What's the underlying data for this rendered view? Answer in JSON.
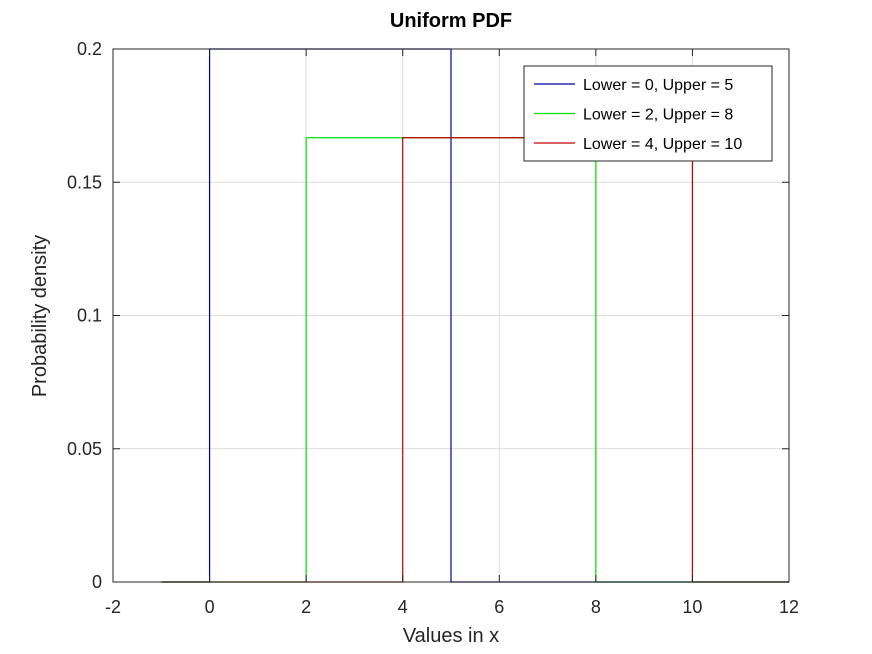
{
  "chart_data": {
    "type": "line",
    "title": "Uniform PDF",
    "xlabel": "Values in x",
    "ylabel": "Probability density",
    "xlim": [
      -2,
      12
    ],
    "ylim": [
      0,
      0.2
    ],
    "xticks": [
      -2,
      0,
      2,
      4,
      6,
      8,
      10,
      12
    ],
    "yticks": [
      0,
      0.05,
      0.1,
      0.15,
      0.2
    ],
    "xtick_labels": [
      "-2",
      "0",
      "2",
      "4",
      "6",
      "8",
      "10",
      "12"
    ],
    "ytick_labels": [
      "0",
      "0.05",
      "0.1",
      "0.15",
      "0.2"
    ],
    "grid": true,
    "legend_position": "top-right",
    "series": [
      {
        "name": "Lower = 0, Upper = 5",
        "color": "#0000a0",
        "x": [
          -1,
          0,
          0,
          5,
          5,
          12
        ],
        "y": [
          0,
          0,
          0.2,
          0.2,
          0,
          0
        ]
      },
      {
        "name": "Lower = 2, Upper = 8",
        "color": "#00e000",
        "x": [
          -1,
          2,
          2,
          8,
          8,
          12
        ],
        "y": [
          0,
          0,
          0.1667,
          0.1667,
          0,
          0
        ]
      },
      {
        "name": "Lower = 4, Upper = 10",
        "color": "#c00000",
        "x": [
          -1,
          4,
          4,
          10,
          10,
          12
        ],
        "y": [
          0,
          0,
          0.1667,
          0.1667,
          0,
          0
        ]
      }
    ]
  }
}
